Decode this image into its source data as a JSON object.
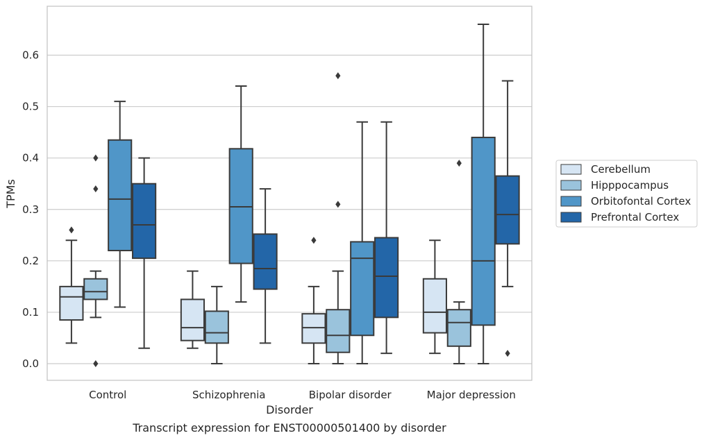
{
  "chart_data": {
    "type": "boxplot",
    "title": "",
    "caption": "Transcript expression for ENST00000501400 by disorder",
    "xlabel": "Disorder",
    "ylabel": "TPMs",
    "ylim": [
      -0.032,
      0.695
    ],
    "yticks": [
      "0.0",
      "0.1",
      "0.2",
      "0.3",
      "0.4",
      "0.5",
      "0.6"
    ],
    "grid": "horizontal",
    "legend_position": "right",
    "categories": [
      "Control",
      "Schizophrenia",
      "Bipolar disorder",
      "Major depression"
    ],
    "series": [
      {
        "name": "Cerebellum",
        "color": "#d6e5f3",
        "boxes": [
          {
            "whislo": 0.04,
            "q1": 0.085,
            "med": 0.13,
            "q3": 0.15,
            "whishi": 0.24,
            "fliers": [
              0.26
            ]
          },
          {
            "whislo": 0.03,
            "q1": 0.045,
            "med": 0.07,
            "q3": 0.125,
            "whishi": 0.18,
            "fliers": []
          },
          {
            "whislo": 0.0,
            "q1": 0.04,
            "med": 0.07,
            "q3": 0.097,
            "whishi": 0.15,
            "fliers": [
              0.24
            ]
          },
          {
            "whislo": 0.02,
            "q1": 0.06,
            "med": 0.1,
            "q3": 0.165,
            "whishi": 0.24,
            "fliers": []
          }
        ]
      },
      {
        "name": "Hipppocampus",
        "color": "#9ac3dc",
        "boxes": [
          {
            "whislo": 0.09,
            "q1": 0.125,
            "med": 0.14,
            "q3": 0.165,
            "whishi": 0.18,
            "fliers": [
              0.4,
              0.34,
              0.0
            ]
          },
          {
            "whislo": 0.0,
            "q1": 0.04,
            "med": 0.06,
            "q3": 0.102,
            "whishi": 0.15,
            "fliers": []
          },
          {
            "whislo": 0.0,
            "q1": 0.022,
            "med": 0.055,
            "q3": 0.105,
            "whishi": 0.18,
            "fliers": [
              0.56,
              0.31
            ]
          },
          {
            "whislo": 0.0,
            "q1": 0.034,
            "med": 0.08,
            "q3": 0.105,
            "whishi": 0.12,
            "fliers": [
              0.39
            ]
          }
        ]
      },
      {
        "name": "Orbitofontal Cortex",
        "color": "#5096c8",
        "boxes": [
          {
            "whislo": 0.11,
            "q1": 0.22,
            "med": 0.32,
            "q3": 0.435,
            "whishi": 0.51,
            "fliers": []
          },
          {
            "whislo": 0.12,
            "q1": 0.195,
            "med": 0.305,
            "q3": 0.418,
            "whishi": 0.54,
            "fliers": []
          },
          {
            "whislo": 0.0,
            "q1": 0.055,
            "med": 0.205,
            "q3": 0.237,
            "whishi": 0.47,
            "fliers": []
          },
          {
            "whislo": 0.0,
            "q1": 0.075,
            "med": 0.2,
            "q3": 0.44,
            "whishi": 0.66,
            "fliers": []
          }
        ]
      },
      {
        "name": "Prefrontal Cortex",
        "color": "#2366a8",
        "boxes": [
          {
            "whislo": 0.03,
            "q1": 0.205,
            "med": 0.27,
            "q3": 0.35,
            "whishi": 0.4,
            "fliers": []
          },
          {
            "whislo": 0.04,
            "q1": 0.145,
            "med": 0.185,
            "q3": 0.252,
            "whishi": 0.34,
            "fliers": []
          },
          {
            "whislo": 0.02,
            "q1": 0.09,
            "med": 0.17,
            "q3": 0.245,
            "whishi": 0.47,
            "fliers": []
          },
          {
            "whislo": 0.15,
            "q1": 0.233,
            "med": 0.29,
            "q3": 0.365,
            "whishi": 0.55,
            "fliers": [
              0.02
            ]
          }
        ]
      }
    ]
  },
  "style": {
    "line_color": "#3a3a3a",
    "grid_color": "#cccccc",
    "frame_color": "#c0c0c0"
  }
}
